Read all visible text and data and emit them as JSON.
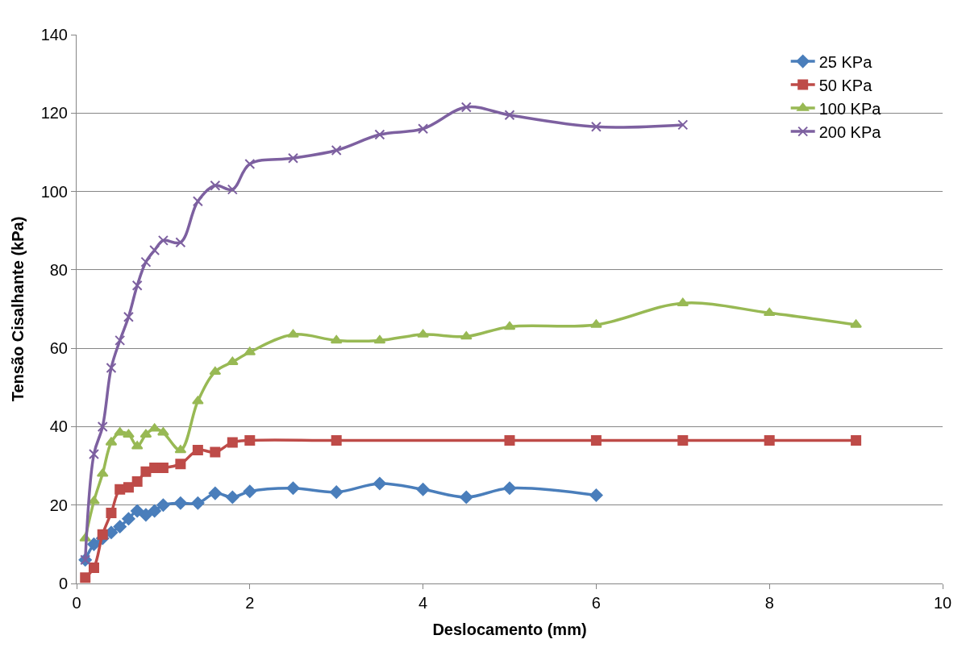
{
  "chart_data": {
    "type": "line",
    "xlabel": "Deslocamento (mm)",
    "ylabel": "Tensão Cisalhante (kPa)",
    "xlim": [
      0,
      10
    ],
    "xticks": [
      0,
      2,
      4,
      6,
      8,
      10
    ],
    "ylim": [
      0,
      140
    ],
    "yticks": [
      0,
      20,
      40,
      60,
      80,
      100,
      120,
      140
    ],
    "grid": "y",
    "legend": "top right",
    "series": [
      {
        "name": "25 KPa",
        "color": "#4a7ebb",
        "marker": "diamond",
        "x": [
          0.1,
          0.2,
          0.3,
          0.4,
          0.5,
          0.6,
          0.7,
          0.8,
          0.9,
          1.0,
          1.2,
          1.4,
          1.6,
          1.8,
          2,
          2.5,
          3,
          3.5,
          4,
          4.5,
          5,
          6
        ],
        "values": [
          6,
          10,
          11.5,
          13,
          14.5,
          16.5,
          18.5,
          17.5,
          18.5,
          20,
          20.5,
          20.5,
          23,
          22,
          23.5,
          24.3,
          23.3,
          25.5,
          24,
          22,
          24.3,
          22.5
        ]
      },
      {
        "name": "50 KPa",
        "color": "#be4b48",
        "marker": "square",
        "x": [
          0.1,
          0.2,
          0.3,
          0.4,
          0.5,
          0.6,
          0.7,
          0.8,
          0.9,
          1.0,
          1.2,
          1.4,
          1.6,
          1.8,
          2,
          3,
          5,
          6,
          7,
          8,
          9
        ],
        "values": [
          1.5,
          4,
          12.5,
          18,
          24,
          24.5,
          26,
          28.5,
          29.5,
          29.5,
          30.5,
          34,
          33.5,
          36,
          36.5,
          36.5,
          36.5,
          36.5,
          36.5,
          36.5,
          36.5
        ]
      },
      {
        "name": "100 KPa",
        "color": "#98b954",
        "marker": "triangle",
        "x": [
          0.1,
          0.2,
          0.3,
          0.4,
          0.5,
          0.6,
          0.7,
          0.8,
          0.9,
          1.0,
          1.2,
          1.4,
          1.6,
          1.8,
          2,
          2.5,
          3,
          3.5,
          4,
          4.5,
          5,
          6,
          7,
          8,
          9
        ],
        "values": [
          11.5,
          21,
          28,
          36,
          38.5,
          38,
          35,
          38,
          39.5,
          38.5,
          34,
          46.5,
          54,
          56.5,
          59,
          63.5,
          62,
          62,
          63.5,
          63,
          65.5,
          66,
          71.5,
          69,
          66
        ]
      },
      {
        "name": "200 KPa",
        "color": "#7d60a0",
        "marker": "cross",
        "x": [
          0.1,
          0.2,
          0.3,
          0.4,
          0.5,
          0.6,
          0.7,
          0.8,
          0.9,
          1.0,
          1.2,
          1.4,
          1.6,
          1.8,
          2,
          2.5,
          3,
          3.5,
          4,
          4.5,
          5,
          6,
          7
        ],
        "values": [
          6,
          33,
          40,
          55,
          62,
          68,
          76,
          82,
          85,
          87.5,
          87,
          97.5,
          101.5,
          100.5,
          107,
          108.5,
          110.5,
          114.5,
          116,
          121.5,
          119.5,
          116.5,
          117
        ]
      }
    ]
  }
}
